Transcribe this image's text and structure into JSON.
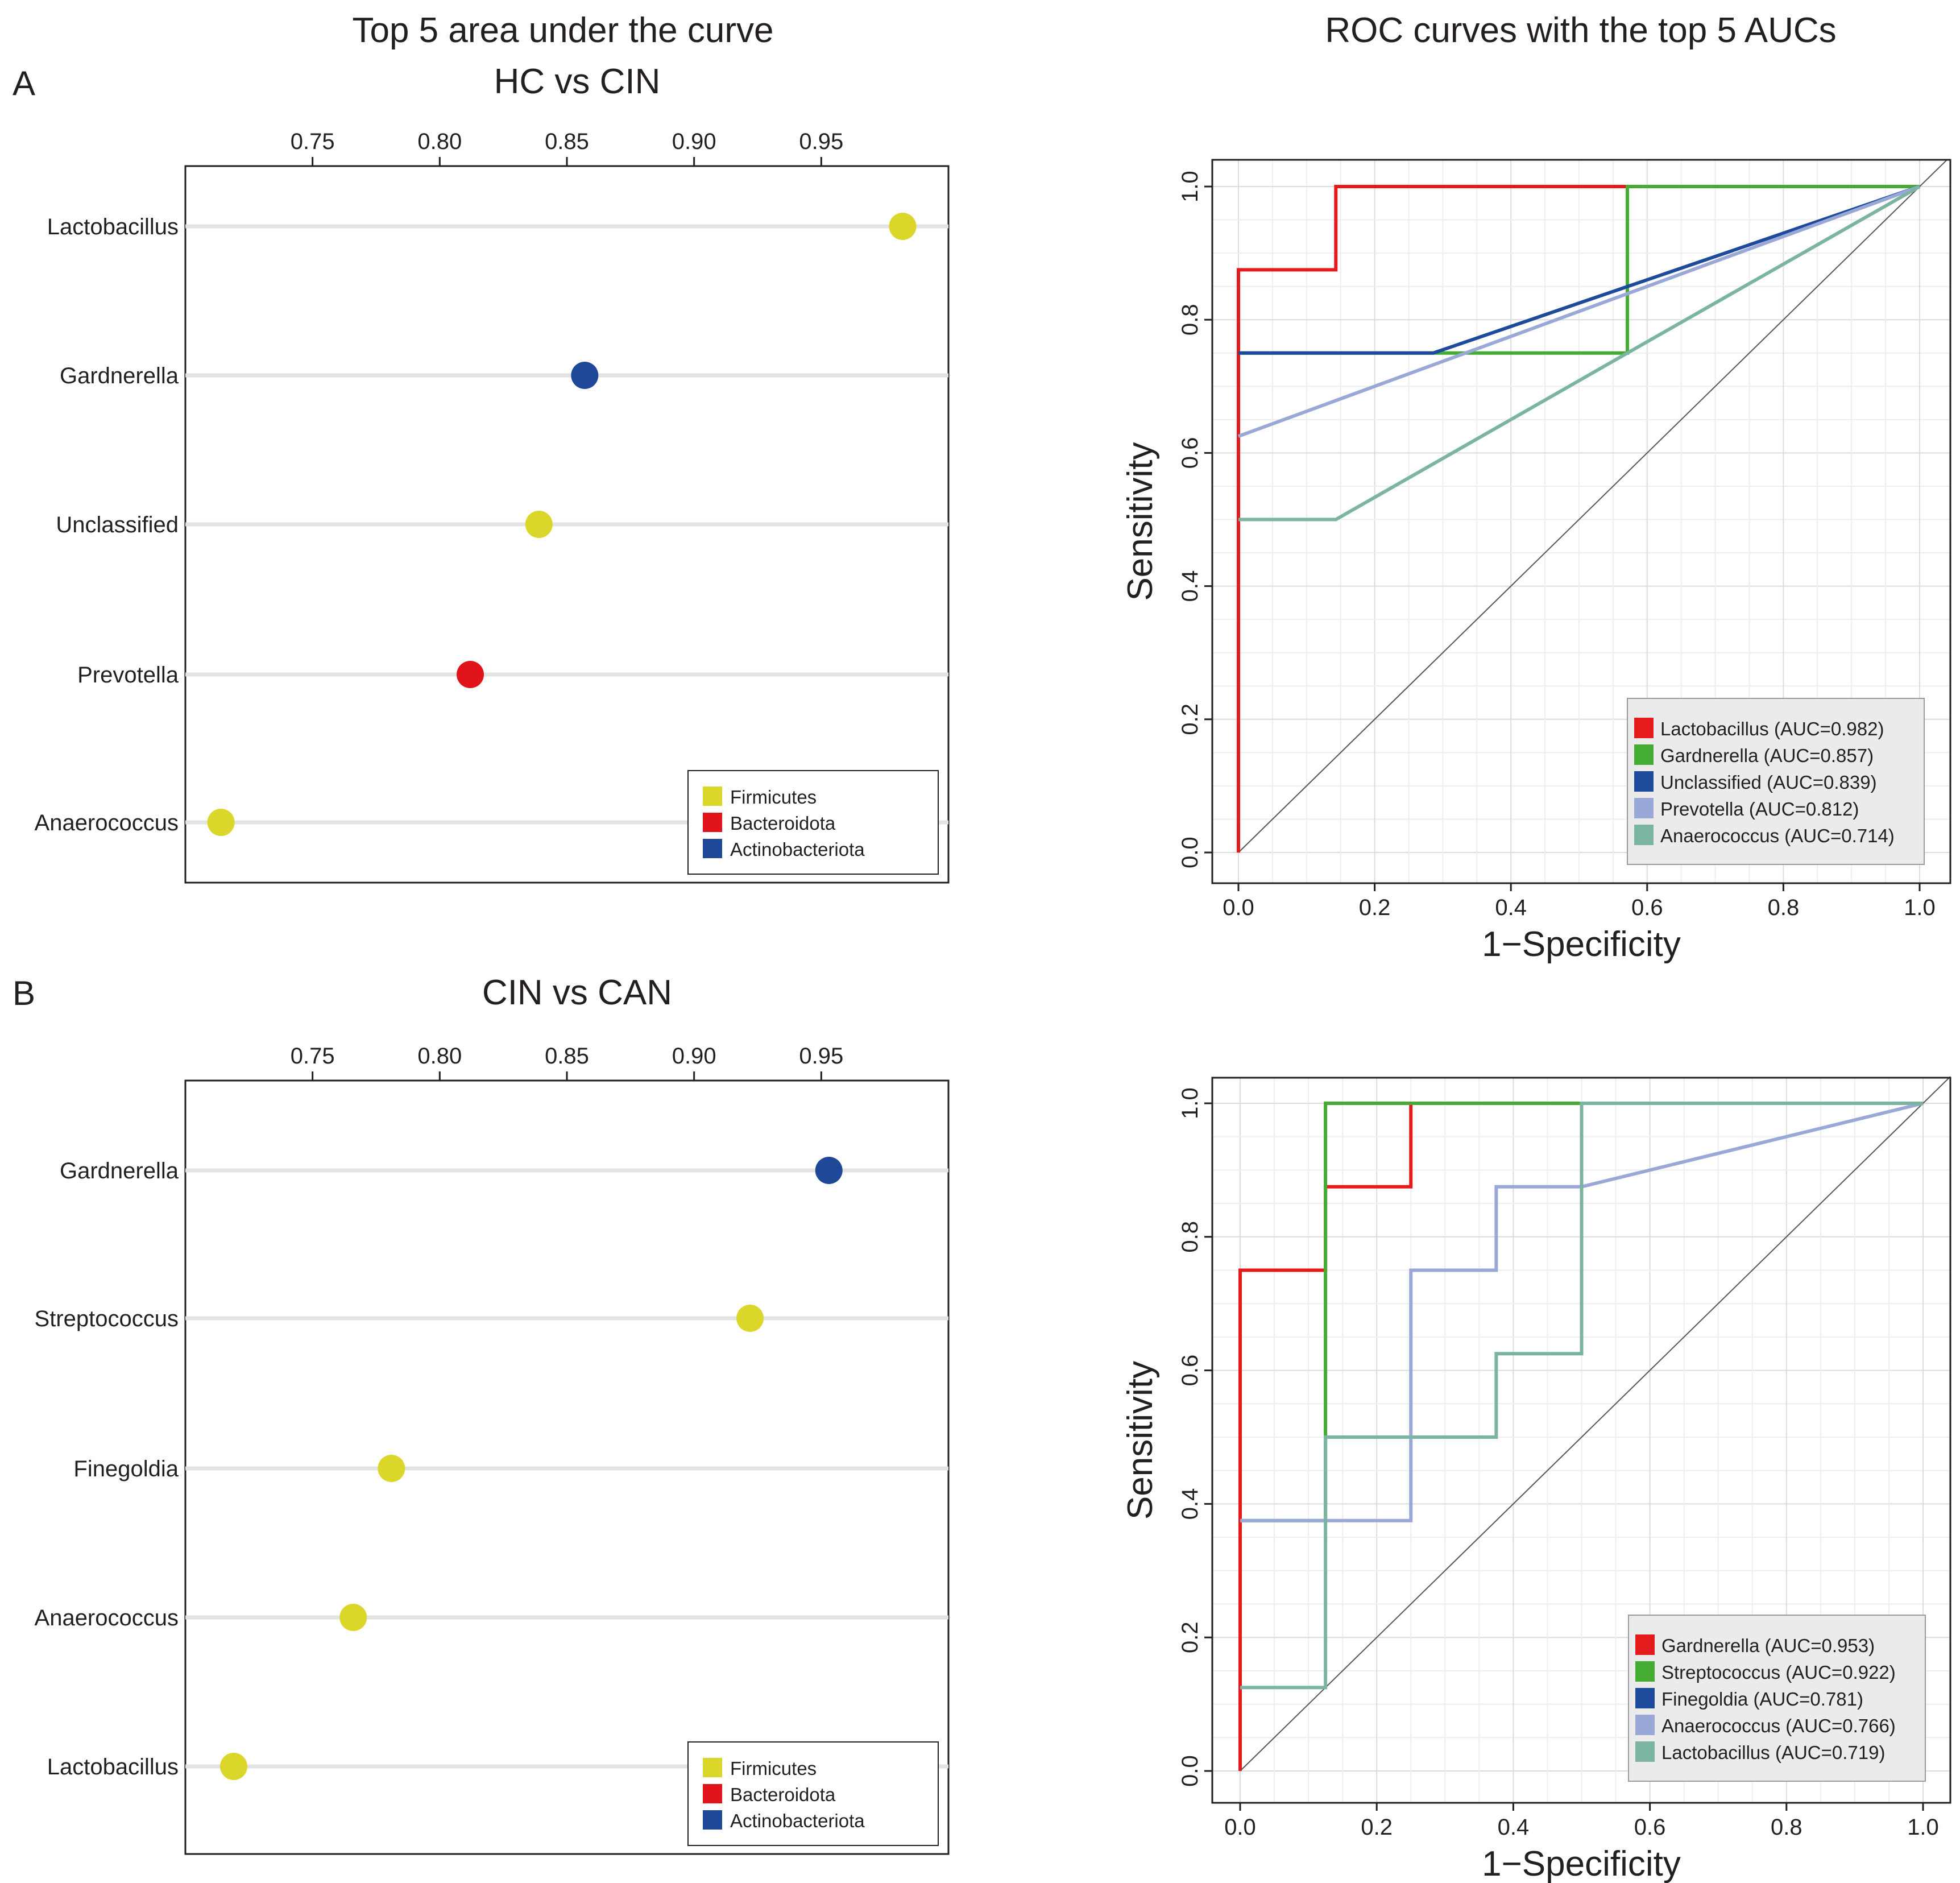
{
  "figure": {
    "left_title": "Top 5 area under the curve",
    "right_title": "ROC curves with the top 5 AUCs"
  },
  "colors": {
    "Firmicutes": "#dbd62a",
    "Bacteroidota": "#e2141b",
    "Actinobacteriota": "#1f4898",
    "roc": [
      "#e41a1c",
      "#44ac33",
      "#1e4a9c",
      "#99a8d6",
      "#7bb5a1"
    ]
  },
  "chart_data": [
    {
      "id": "A-dot",
      "type": "scatter",
      "panel_label": "A",
      "title": "HC vs CIN",
      "xticks": [
        0.75,
        0.8,
        0.85,
        0.9,
        0.95
      ],
      "xtick_labels": [
        "0.75",
        "0.80",
        "0.85",
        "0.90",
        "0.95"
      ],
      "xlim": [
        0.7,
        1.0
      ],
      "categories": [
        "Lactobacillus",
        "Gardnerella",
        "Unclassified",
        "Prevotella",
        "Anaerococcus"
      ],
      "values": [
        0.982,
        0.857,
        0.839,
        0.812,
        0.714
      ],
      "phylum": [
        "Firmicutes",
        "Actinobacteriota",
        "Firmicutes",
        "Bacteroidota",
        "Firmicutes"
      ],
      "legend": [
        "Firmicutes",
        "Bacteroidota",
        "Actinobacteriota"
      ]
    },
    {
      "id": "A-roc",
      "type": "line",
      "xlabel": "1−Specificity",
      "ylabel": "Sensitivity",
      "xlim": [
        0,
        1
      ],
      "ylim": [
        0,
        1
      ],
      "ticks": [
        "0.0",
        "0.2",
        "0.4",
        "0.6",
        "0.8",
        "1.0"
      ],
      "series": [
        {
          "name": "Lactobacillus (AUC=0.982)",
          "x": [
            0,
            0,
            0.143,
            0.143,
            1
          ],
          "y": [
            0,
            0.875,
            0.875,
            1,
            1
          ]
        },
        {
          "name": "Gardnerella (AUC=0.857)",
          "x": [
            0,
            0.571,
            0.571,
            1
          ],
          "y": [
            0.75,
            0.75,
            1,
            1
          ]
        },
        {
          "name": "Unclassified (AUC=0.839)",
          "x": [
            0,
            0.286,
            1
          ],
          "y": [
            0.75,
            0.75,
            1
          ]
        },
        {
          "name": "Prevotella (AUC=0.812)",
          "x": [
            0,
            1
          ],
          "y": [
            0.625,
            1
          ]
        },
        {
          "name": "Anaerococcus (AUC=0.714)",
          "x": [
            0,
            0.143,
            0.571,
            1
          ],
          "y": [
            0.5,
            0.5,
            0.75,
            1
          ]
        }
      ]
    },
    {
      "id": "B-dot",
      "type": "scatter",
      "panel_label": "B",
      "title": "CIN vs CAN",
      "xticks": [
        0.75,
        0.8,
        0.85,
        0.9,
        0.95
      ],
      "xtick_labels": [
        "0.75",
        "0.80",
        "0.85",
        "0.90",
        "0.95"
      ],
      "xlim": [
        0.7,
        1.0
      ],
      "categories": [
        "Gardnerella",
        "Streptococcus",
        "Finegoldia",
        "Anaerococcus",
        "Lactobacillus"
      ],
      "values": [
        0.953,
        0.922,
        0.781,
        0.766,
        0.719
      ],
      "phylum": [
        "Actinobacteriota",
        "Firmicutes",
        "Firmicutes",
        "Firmicutes",
        "Firmicutes"
      ],
      "legend": [
        "Firmicutes",
        "Bacteroidota",
        "Actinobacteriota"
      ]
    },
    {
      "id": "B-roc",
      "type": "line",
      "xlabel": "1−Specificity",
      "ylabel": "Sensitivity",
      "xlim": [
        0,
        1
      ],
      "ylim": [
        0,
        1
      ],
      "ticks": [
        "0.0",
        "0.2",
        "0.4",
        "0.6",
        "0.8",
        "1.0"
      ],
      "series": [
        {
          "name": "Gardnerella (AUC=0.953)",
          "x": [
            0,
            0,
            0.125,
            0.125,
            0.25,
            0.25,
            1
          ],
          "y": [
            0,
            0.75,
            0.75,
            0.875,
            0.875,
            1,
            1
          ]
        },
        {
          "name": "Streptococcus (AUC=0.922)",
          "x": [
            0,
            0.125,
            0.125,
            1
          ],
          "y": [
            0.375,
            0.375,
            1,
            1
          ]
        },
        {
          "name": "Finegoldia (AUC=0.781)",
          "x": [],
          "y": []
        },
        {
          "name": "Anaerococcus (AUC=0.766)",
          "x": [
            0,
            0.25,
            0.25,
            0.375,
            0.375,
            0.5,
            1
          ],
          "y": [
            0.375,
            0.375,
            0.75,
            0.75,
            0.875,
            0.875,
            1
          ]
        },
        {
          "name": "Lactobacillus (AUC=0.719)",
          "x": [
            0,
            0.125,
            0.125,
            0.375,
            0.375,
            0.5,
            0.5,
            1
          ],
          "y": [
            0.125,
            0.125,
            0.5,
            0.5,
            0.625,
            0.625,
            1,
            1
          ]
        }
      ]
    }
  ]
}
